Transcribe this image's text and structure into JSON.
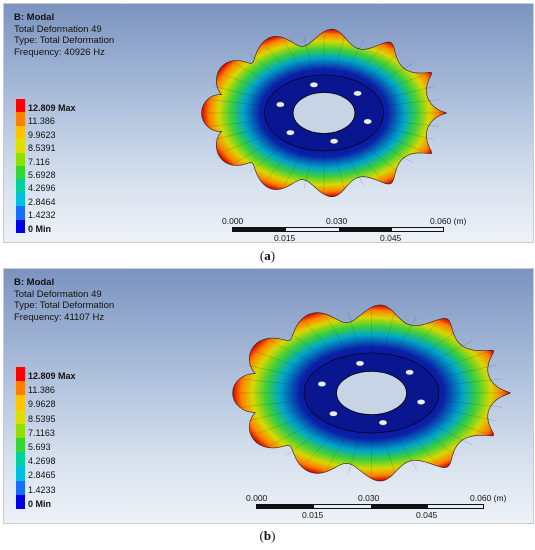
{
  "panels": {
    "a": {
      "info": {
        "title": "B: Modal",
        "line1": "Total Deformation 49",
        "line2": "Type: Total Deformation",
        "line3": "Frequency: 40926 Hz"
      },
      "legend": [
        {
          "label": "12.809 Max",
          "color": "#ff0000"
        },
        {
          "label": "11.386",
          "color": "#ff8000"
        },
        {
          "label": "9.9623",
          "color": "#ffc400"
        },
        {
          "label": "8.5391",
          "color": "#dede00"
        },
        {
          "label": "7.116",
          "color": "#8fe000"
        },
        {
          "label": "5.6928",
          "color": "#33d633"
        },
        {
          "label": "4.2696",
          "color": "#00d19e"
        },
        {
          "label": "2.8464",
          "color": "#00c0e0"
        },
        {
          "label": "1.4232",
          "color": "#1a6bff"
        },
        {
          "label": "0 Min",
          "color": "#0000e0"
        }
      ],
      "scale": {
        "t0": "0.000",
        "t1": "0.030",
        "t2": "0.060 (m)",
        "b1": "0.015",
        "b2": "0.045"
      },
      "caption": {
        "open": "(",
        "letter": "a",
        "close": ")"
      }
    },
    "b": {
      "info": {
        "title": "B: Modal",
        "line1": "Total Deformation 49",
        "line2": "Type: Total Deformation",
        "line3": "Frequency: 41107 Hz"
      },
      "legend": [
        {
          "label": "12.809 Max",
          "color": "#ff0000"
        },
        {
          "label": "11.386",
          "color": "#ff8000"
        },
        {
          "label": "9.9628",
          "color": "#ffc400"
        },
        {
          "label": "8.5395",
          "color": "#dede00"
        },
        {
          "label": "7.1163",
          "color": "#8fe000"
        },
        {
          "label": "5.693",
          "color": "#33d633"
        },
        {
          "label": "4.2698",
          "color": "#00d19e"
        },
        {
          "label": "2.8465",
          "color": "#00c0e0"
        },
        {
          "label": "1.4233",
          "color": "#1a6bff"
        },
        {
          "label": "0 Min",
          "color": "#0000e0"
        }
      ],
      "scale": {
        "t0": "0.000",
        "t1": "0.030",
        "t2": "0.060 (m)",
        "b1": "0.015",
        "b2": "0.045"
      },
      "caption": {
        "open": "(",
        "letter": "b",
        "close": ")"
      }
    }
  }
}
